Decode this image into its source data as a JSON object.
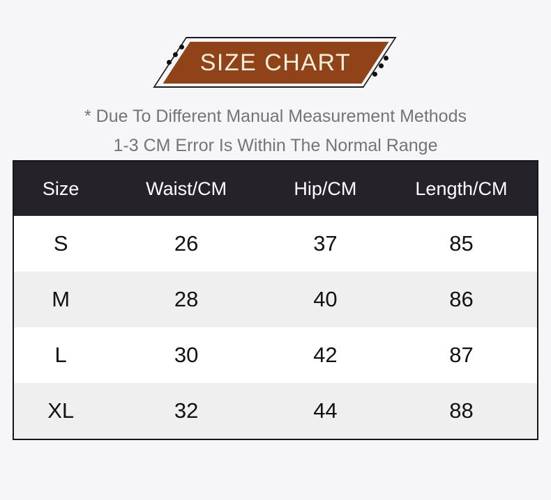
{
  "page": {
    "background": "#f6f6f8"
  },
  "banner": {
    "title": "SIZE CHART",
    "fill_color": "#904218",
    "outline_color": "#1b1b1b",
    "text_color": "#f8efdc"
  },
  "disclaimer": {
    "line1": "* Due To Different Manual Measurement Methods",
    "line2": "1-3 CM Error Is Within The Normal Range"
  },
  "size_table": {
    "header_bg": "#26222a",
    "header_text_color": "#ffffff",
    "stripe_color": "#efeff0",
    "columns": [
      "Size",
      "Waist/CM",
      "Hip/CM",
      "Length/CM"
    ],
    "rows": [
      [
        "S",
        "26",
        "37",
        "85"
      ],
      [
        "M",
        "28",
        "40",
        "86"
      ],
      [
        "L",
        "30",
        "42",
        "87"
      ],
      [
        "XL",
        "32",
        "44",
        "88"
      ]
    ]
  },
  "chart_data": {
    "type": "table",
    "title": "SIZE CHART",
    "columns": [
      "Size",
      "Waist/CM",
      "Hip/CM",
      "Length/CM"
    ],
    "categories": [
      "S",
      "M",
      "L",
      "XL"
    ],
    "series": [
      {
        "name": "Waist/CM",
        "values": [
          26,
          28,
          30,
          32
        ]
      },
      {
        "name": "Hip/CM",
        "values": [
          37,
          40,
          42,
          44
        ]
      },
      {
        "name": "Length/CM",
        "values": [
          85,
          86,
          87,
          88
        ]
      }
    ]
  }
}
